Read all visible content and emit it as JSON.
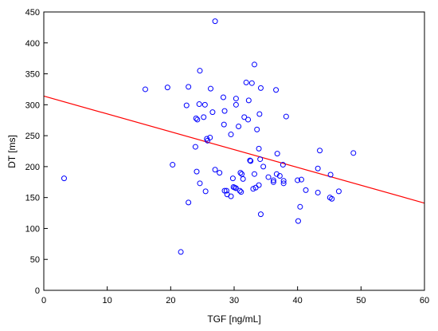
{
  "chart_data": {
    "type": "scatter",
    "title": "",
    "xlabel": "TGF [ng/mL]",
    "ylabel": "DT [ms]",
    "xlim": [
      0,
      60
    ],
    "ylim": [
      0,
      450
    ],
    "xticks": [
      "0",
      "10",
      "20",
      "30",
      "40",
      "50",
      "60"
    ],
    "yticks": [
      "0",
      "50",
      "100",
      "150",
      "200",
      "250",
      "300",
      "350",
      "400",
      "450"
    ],
    "grid": false,
    "point_color": "#0000ff",
    "line_color": "#ff0000",
    "series": [
      {
        "x": [
          27.0,
          24.6,
          33.2,
          32.8,
          31.9,
          36.6,
          28.3,
          34.2,
          22.8,
          26.3,
          25.4,
          16.0,
          30.3,
          32.3,
          22.5,
          24.5,
          28.5,
          24.2,
          30.3,
          26.6,
          31.6,
          38.2,
          25.2,
          24.0,
          28.4,
          32.2,
          25.7,
          25.8,
          26.2,
          30.7,
          29.5,
          34.0,
          33.6,
          36.8,
          43.5,
          48.8,
          23.9,
          20.3,
          3.2,
          33.9,
          37.7,
          32.5,
          32.6,
          34.1,
          36.2,
          34.6,
          36.7,
          27.0,
          27.7,
          31.2,
          31.0,
          33.2,
          43.2,
          45.2,
          24.1,
          29.8,
          31.4,
          40.0,
          40.6,
          35.4,
          36.2,
          37.2,
          33.0,
          37.8,
          37.8,
          28.5,
          30.3,
          28.8,
          30.9,
          33.4,
          41.3,
          46.5,
          43.2,
          29.5,
          28.9,
          31.1,
          25.5,
          30.1,
          34.2,
          24.6,
          45.1,
          45.4,
          22.8,
          40.4,
          40.1,
          33.9,
          21.6,
          19.5,
          29.9
        ],
        "y": [
          435,
          355,
          365,
          335,
          336,
          324,
          312,
          327,
          329,
          326,
          300,
          325,
          310,
          307,
          299,
          301,
          290,
          276,
          300,
          288,
          280,
          281,
          280,
          278,
          268,
          276,
          245,
          242,
          247,
          265,
          252,
          285,
          260,
          221,
          226,
          222,
          232,
          203,
          181,
          229,
          203,
          210,
          209,
          212,
          175,
          200,
          188,
          195,
          190,
          188,
          190,
          188,
          197,
          187,
          192,
          181,
          180,
          178,
          179,
          183,
          178,
          185,
          164,
          177,
          173,
          161,
          165,
          161,
          161,
          166,
          162,
          160,
          158,
          152,
          155,
          159,
          160,
          166,
          123,
          173,
          150,
          148,
          142,
          135,
          112,
          170,
          62,
          328,
          167
        ]
      }
    ],
    "trendline": {
      "x": [
        0,
        60
      ],
      "y": [
        314,
        141
      ]
    }
  }
}
